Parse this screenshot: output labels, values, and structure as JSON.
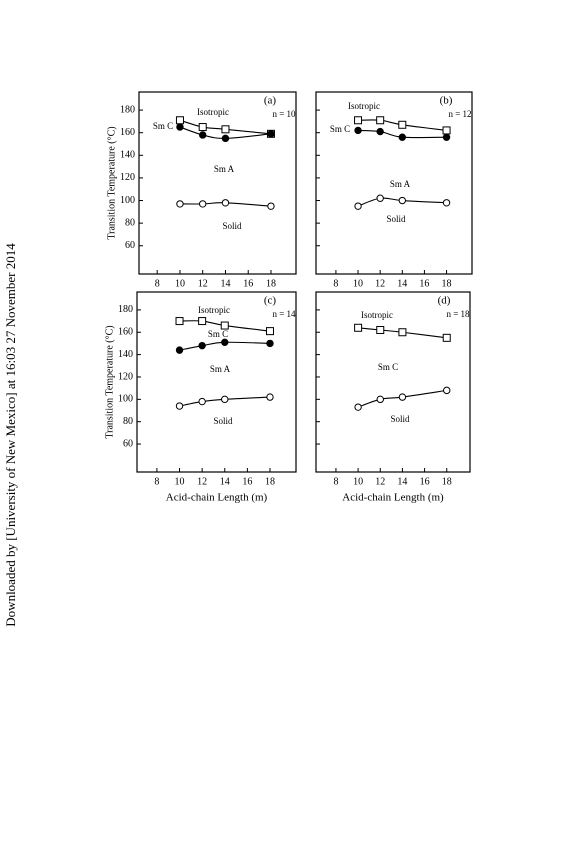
{
  "sidebar": "Downloaded by [University of New Mexico] at 16:03 27 November 2014",
  "chart_data": [
    {
      "type": "line",
      "panel_label": "(a)",
      "subtitle": "n = 10",
      "ylabel": "Transition Temperature (°C)",
      "annotations": [
        "Isotropic",
        "Sm C",
        "Sm A",
        "Solid"
      ],
      "xlim": [
        6.4,
        20.2
      ],
      "ylim": [
        35,
        196
      ],
      "xticks": [
        8,
        10,
        12,
        14,
        16,
        18
      ],
      "yticks": [
        60,
        80,
        100,
        120,
        140,
        160,
        180
      ],
      "ytick_labels": true,
      "x": [
        10,
        12,
        14,
        18
      ],
      "series": [
        {
          "marker": "square",
          "color": "#000000",
          "values": [
            171,
            165,
            163,
            159
          ]
        },
        {
          "marker": "filled-circle",
          "color": "#000000",
          "values": [
            165,
            158,
            155,
            159
          ]
        },
        {
          "marker": "circle",
          "color": "#000000",
          "values": [
            97,
            97,
            98,
            95
          ]
        }
      ]
    },
    {
      "type": "line",
      "panel_label": "(b)",
      "subtitle": "n = 12",
      "annotations": [
        "Isotropic",
        "Sm C",
        "Sm A",
        "Solid"
      ],
      "xlim": [
        6.2,
        20.3
      ],
      "ylim": [
        35,
        196
      ],
      "xticks": [
        8,
        10,
        12,
        14,
        16,
        18
      ],
      "yticks": [
        60,
        80,
        100,
        120,
        140,
        160,
        180
      ],
      "ytick_labels": false,
      "x": [
        10,
        12,
        14,
        18
      ],
      "series": [
        {
          "marker": "square",
          "color": "#000000",
          "values": [
            171,
            171,
            167,
            162
          ]
        },
        {
          "marker": "filled-circle",
          "color": "#000000",
          "values": [
            162,
            161,
            156,
            156
          ]
        },
        {
          "marker": "circle",
          "color": "#000000",
          "values": [
            95,
            102,
            100,
            98
          ]
        }
      ]
    },
    {
      "type": "line",
      "panel_label": "(c)",
      "subtitle": "n = 14",
      "ylabel": "Transition Temperature (°C)",
      "xlabel": "Acid-chain Length (m)",
      "annotations": [
        "Isotropic",
        "Sm C",
        "Sm A",
        "Solid"
      ],
      "xlim": [
        6.24,
        20.3
      ],
      "ylim": [
        35,
        196
      ],
      "xticks": [
        8,
        10,
        12,
        14,
        16,
        18
      ],
      "yticks": [
        60,
        80,
        100,
        120,
        140,
        160,
        180
      ],
      "ytick_labels": true,
      "x": [
        10,
        12,
        14,
        18
      ],
      "series": [
        {
          "marker": "square",
          "color": "#000000",
          "values": [
            170,
            170,
            166,
            161
          ]
        },
        {
          "marker": "filled-circle",
          "color": "#000000",
          "values": [
            144,
            148,
            151,
            150
          ]
        },
        {
          "marker": "circle",
          "color": "#000000",
          "values": [
            94,
            98,
            100,
            102
          ]
        }
      ]
    },
    {
      "type": "line",
      "panel_label": "(d)",
      "subtitle": "n = 18",
      "xlabel": "Acid-chain Length (m)",
      "annotations": [
        "Isotropic",
        "Sm C",
        "Solid"
      ],
      "xlim": [
        6.2,
        20.1
      ],
      "ylim": [
        35,
        196
      ],
      "xticks": [
        8,
        10,
        12,
        14,
        16,
        18
      ],
      "yticks": [
        60,
        80,
        100,
        120,
        140,
        160,
        180
      ],
      "ytick_labels": false,
      "x": [
        10,
        12,
        14,
        18
      ],
      "series": [
        {
          "marker": "square",
          "color": "#000000",
          "values": [
            164,
            162,
            160,
            155
          ]
        },
        {
          "marker": "circle",
          "color": "#000000",
          "values": [
            93,
            100,
            102,
            108
          ]
        }
      ]
    }
  ]
}
